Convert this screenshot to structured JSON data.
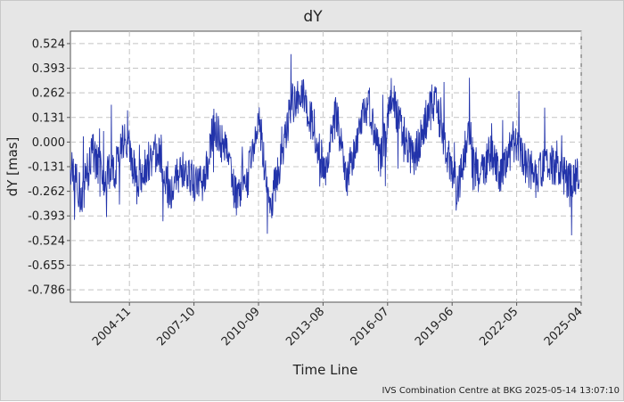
{
  "chart_data": {
    "type": "line",
    "title": "dY",
    "xlabel": "Time Line",
    "ylabel": "dY [mas]",
    "footer": "IVS Combination Centre at BKG 2025-05-14 13:07:10",
    "ylim": [
      -0.852,
      0.59
    ],
    "xlim": [
      "2002-03",
      "2025-04"
    ],
    "y_ticks": [
      "0.524",
      "0.393",
      "0.262",
      "0.131",
      "0.000",
      "-0.131",
      "-0.262",
      "-0.393",
      "-0.524",
      "-0.655",
      "-0.786"
    ],
    "x_ticks": [
      "2004-11",
      "2007-10",
      "2010-09",
      "2013-08",
      "2016-07",
      "2019-06",
      "2022-05",
      "2025-04"
    ],
    "grid": true,
    "series_color": "#2233aa",
    "series": [
      {
        "x": [
          "2002-03",
          "2002-09",
          "2003-03",
          "2003-09",
          "2004-03",
          "2004-09",
          "2005-03",
          "2005-09",
          "2006-03",
          "2006-09",
          "2007-03",
          "2007-09",
          "2008-03",
          "2008-09",
          "2009-03",
          "2009-09",
          "2010-03",
          "2010-09",
          "2011-03",
          "2011-09",
          "2012-03",
          "2012-09",
          "2013-03",
          "2013-09",
          "2014-03",
          "2014-09",
          "2015-03",
          "2015-09",
          "2016-03",
          "2016-09",
          "2017-03",
          "2017-09",
          "2018-03",
          "2018-09",
          "2019-03",
          "2019-09",
          "2020-03",
          "2020-09",
          "2021-03",
          "2021-09",
          "2022-03",
          "2022-09",
          "2023-03",
          "2023-09",
          "2024-03",
          "2024-09",
          "2025-03"
        ],
        "y": [
          -0.13,
          -0.3,
          -0.05,
          -0.2,
          -0.15,
          0.05,
          -0.22,
          -0.1,
          -0.05,
          -0.28,
          -0.15,
          -0.2,
          -0.25,
          0.1,
          -0.05,
          -0.3,
          -0.2,
          0.12,
          -0.35,
          -0.1,
          0.2,
          0.25,
          0.05,
          -0.15,
          0.15,
          -0.2,
          0.05,
          0.2,
          -0.1,
          0.25,
          0.05,
          -0.1,
          0.1,
          0.22,
          -0.05,
          -0.25,
          0.05,
          -0.2,
          -0.05,
          -0.18,
          0.0,
          -0.1,
          -0.2,
          -0.1,
          -0.15,
          -0.2,
          -0.2
        ]
      }
    ]
  }
}
